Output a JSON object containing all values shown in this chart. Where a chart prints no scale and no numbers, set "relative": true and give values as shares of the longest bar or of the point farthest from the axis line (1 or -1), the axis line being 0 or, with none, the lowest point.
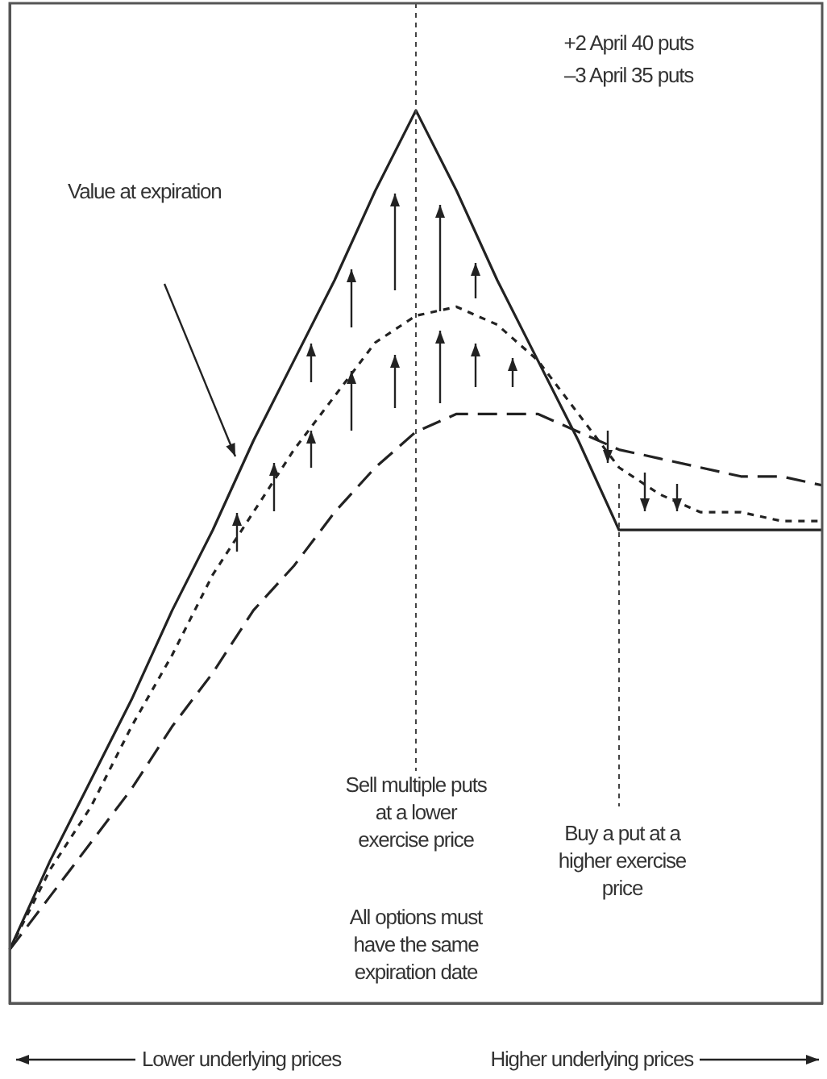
{
  "chart_data": {
    "type": "line",
    "relative": true,
    "tick_labels": false,
    "categories": [
      null,
      null,
      null,
      null,
      null,
      null,
      null,
      null,
      null,
      null,
      null,
      null,
      null,
      null,
      null,
      null,
      null,
      null,
      null,
      null,
      null
    ],
    "series": [
      {
        "color": "#222222",
        "line_style": "solid",
        "values": [
          0.06,
          0.16,
          0.25,
          0.34,
          0.44,
          0.53,
          0.63,
          0.72,
          0.81,
          0.91,
          1,
          0.91,
          0.81,
          0.72,
          0.63,
          0.53,
          0.53,
          0.53,
          0.53,
          0.53,
          0.53
        ]
      },
      {
        "color": "#222222",
        "line_style": "dotted",
        "values": [
          0.06,
          0.15,
          0.22,
          0.31,
          0.39,
          0.48,
          0.55,
          0.62,
          0.68,
          0.74,
          0.77,
          0.78,
          0.76,
          0.72,
          0.66,
          0.6,
          0.57,
          0.55,
          0.55,
          0.54,
          0.54
        ]
      },
      {
        "color": "#222222",
        "line_style": "dashed",
        "values": [
          0.06,
          0.12,
          0.18,
          0.24,
          0.31,
          0.37,
          0.44,
          0.49,
          0.55,
          0.6,
          0.64,
          0.66,
          0.66,
          0.66,
          0.64,
          0.62,
          0.61,
          0.6,
          0.59,
          0.59,
          0.58
        ]
      }
    ],
    "annotations": [
      "+2 April 40 puts",
      "–3 April 35 puts",
      "Value at expiration",
      "Sell multiple puts at a lower exercise price",
      "Buy a put at a higher exercise price",
      "All options must have the same expiration date",
      "Lower underlying prices",
      "Higher underlying prices"
    ]
  }
}
